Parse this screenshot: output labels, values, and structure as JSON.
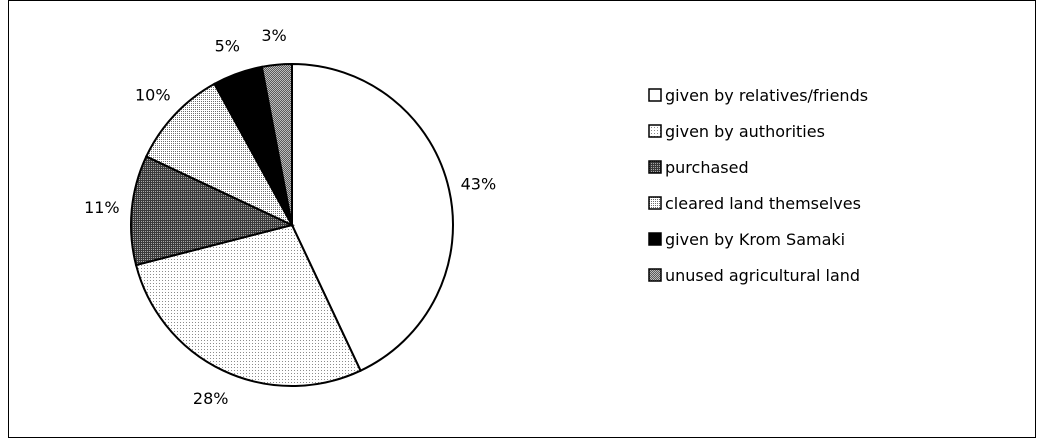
{
  "chart_data": {
    "type": "pie",
    "title": "",
    "slices": [
      {
        "label": "given by relatives/friends",
        "value": 43,
        "display": "43%",
        "color": "#ffffff",
        "fill_pattern": "solid"
      },
      {
        "label": "given by authorities",
        "value": 28,
        "display": "28%",
        "color": "#f2f2f2",
        "fill_pattern": "light-dots"
      },
      {
        "label": "purchased",
        "value": 11,
        "display": "11%",
        "color": "#707070",
        "fill_pattern": "dark-dots"
      },
      {
        "label": "cleared land themselves",
        "value": 10,
        "display": "10%",
        "color": "#e0e0e0",
        "fill_pattern": "medium-dots"
      },
      {
        "label": "given by Krom Samaki",
        "value": 5,
        "display": "5%",
        "color": "#000000",
        "fill_pattern": "solid"
      },
      {
        "label": "unused agricultural land",
        "value": 3,
        "display": "3%",
        "color": "#8a8a8a",
        "fill_pattern": "grey-dots"
      }
    ],
    "start_angle_deg": 0,
    "direction": "clockwise",
    "legend_position": "right"
  }
}
